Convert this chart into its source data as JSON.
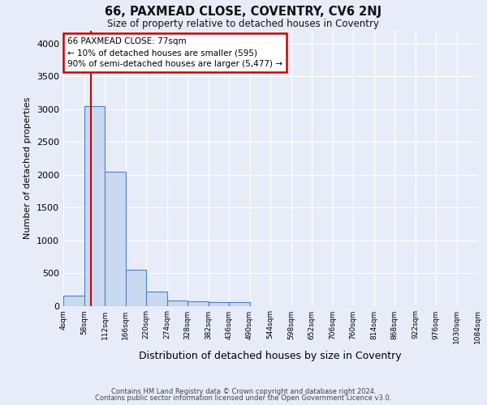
{
  "title": "66, PAXMEAD CLOSE, COVENTRY, CV6 2NJ",
  "subtitle": "Size of property relative to detached houses in Coventry",
  "xlabel": "Distribution of detached houses by size in Coventry",
  "ylabel": "Number of detached properties",
  "bin_edges": [
    4,
    58,
    112,
    166,
    220,
    274,
    328,
    382,
    436,
    490,
    544,
    598,
    652,
    706,
    760,
    814,
    868,
    922,
    976,
    1030,
    1084
  ],
  "bin_counts": [
    150,
    3050,
    2050,
    550,
    220,
    80,
    65,
    50,
    50,
    0,
    0,
    0,
    0,
    0,
    0,
    0,
    0,
    0,
    0,
    0
  ],
  "bar_facecolor": "#c9d9f0",
  "bar_edgecolor": "#5080c0",
  "bg_color": "#e8ecf8",
  "grid_color": "#ffffff",
  "vline_x": 77,
  "vline_color": "#cc0000",
  "annotation_line1": "66 PAXMEAD CLOSE: 77sqm",
  "annotation_line2": "← 10% of detached houses are smaller (595)",
  "annotation_line3": "90% of semi-detached houses are larger (5,477) →",
  "annotation_box_color": "#cc0000",
  "annotation_bg": "#ffffff",
  "ylim": [
    0,
    4200
  ],
  "yticks": [
    0,
    500,
    1000,
    1500,
    2000,
    2500,
    3000,
    3500,
    4000
  ],
  "footnote1": "Contains HM Land Registry data © Crown copyright and database right 2024.",
  "footnote2": "Contains public sector information licensed under the Open Government Licence v3.0."
}
